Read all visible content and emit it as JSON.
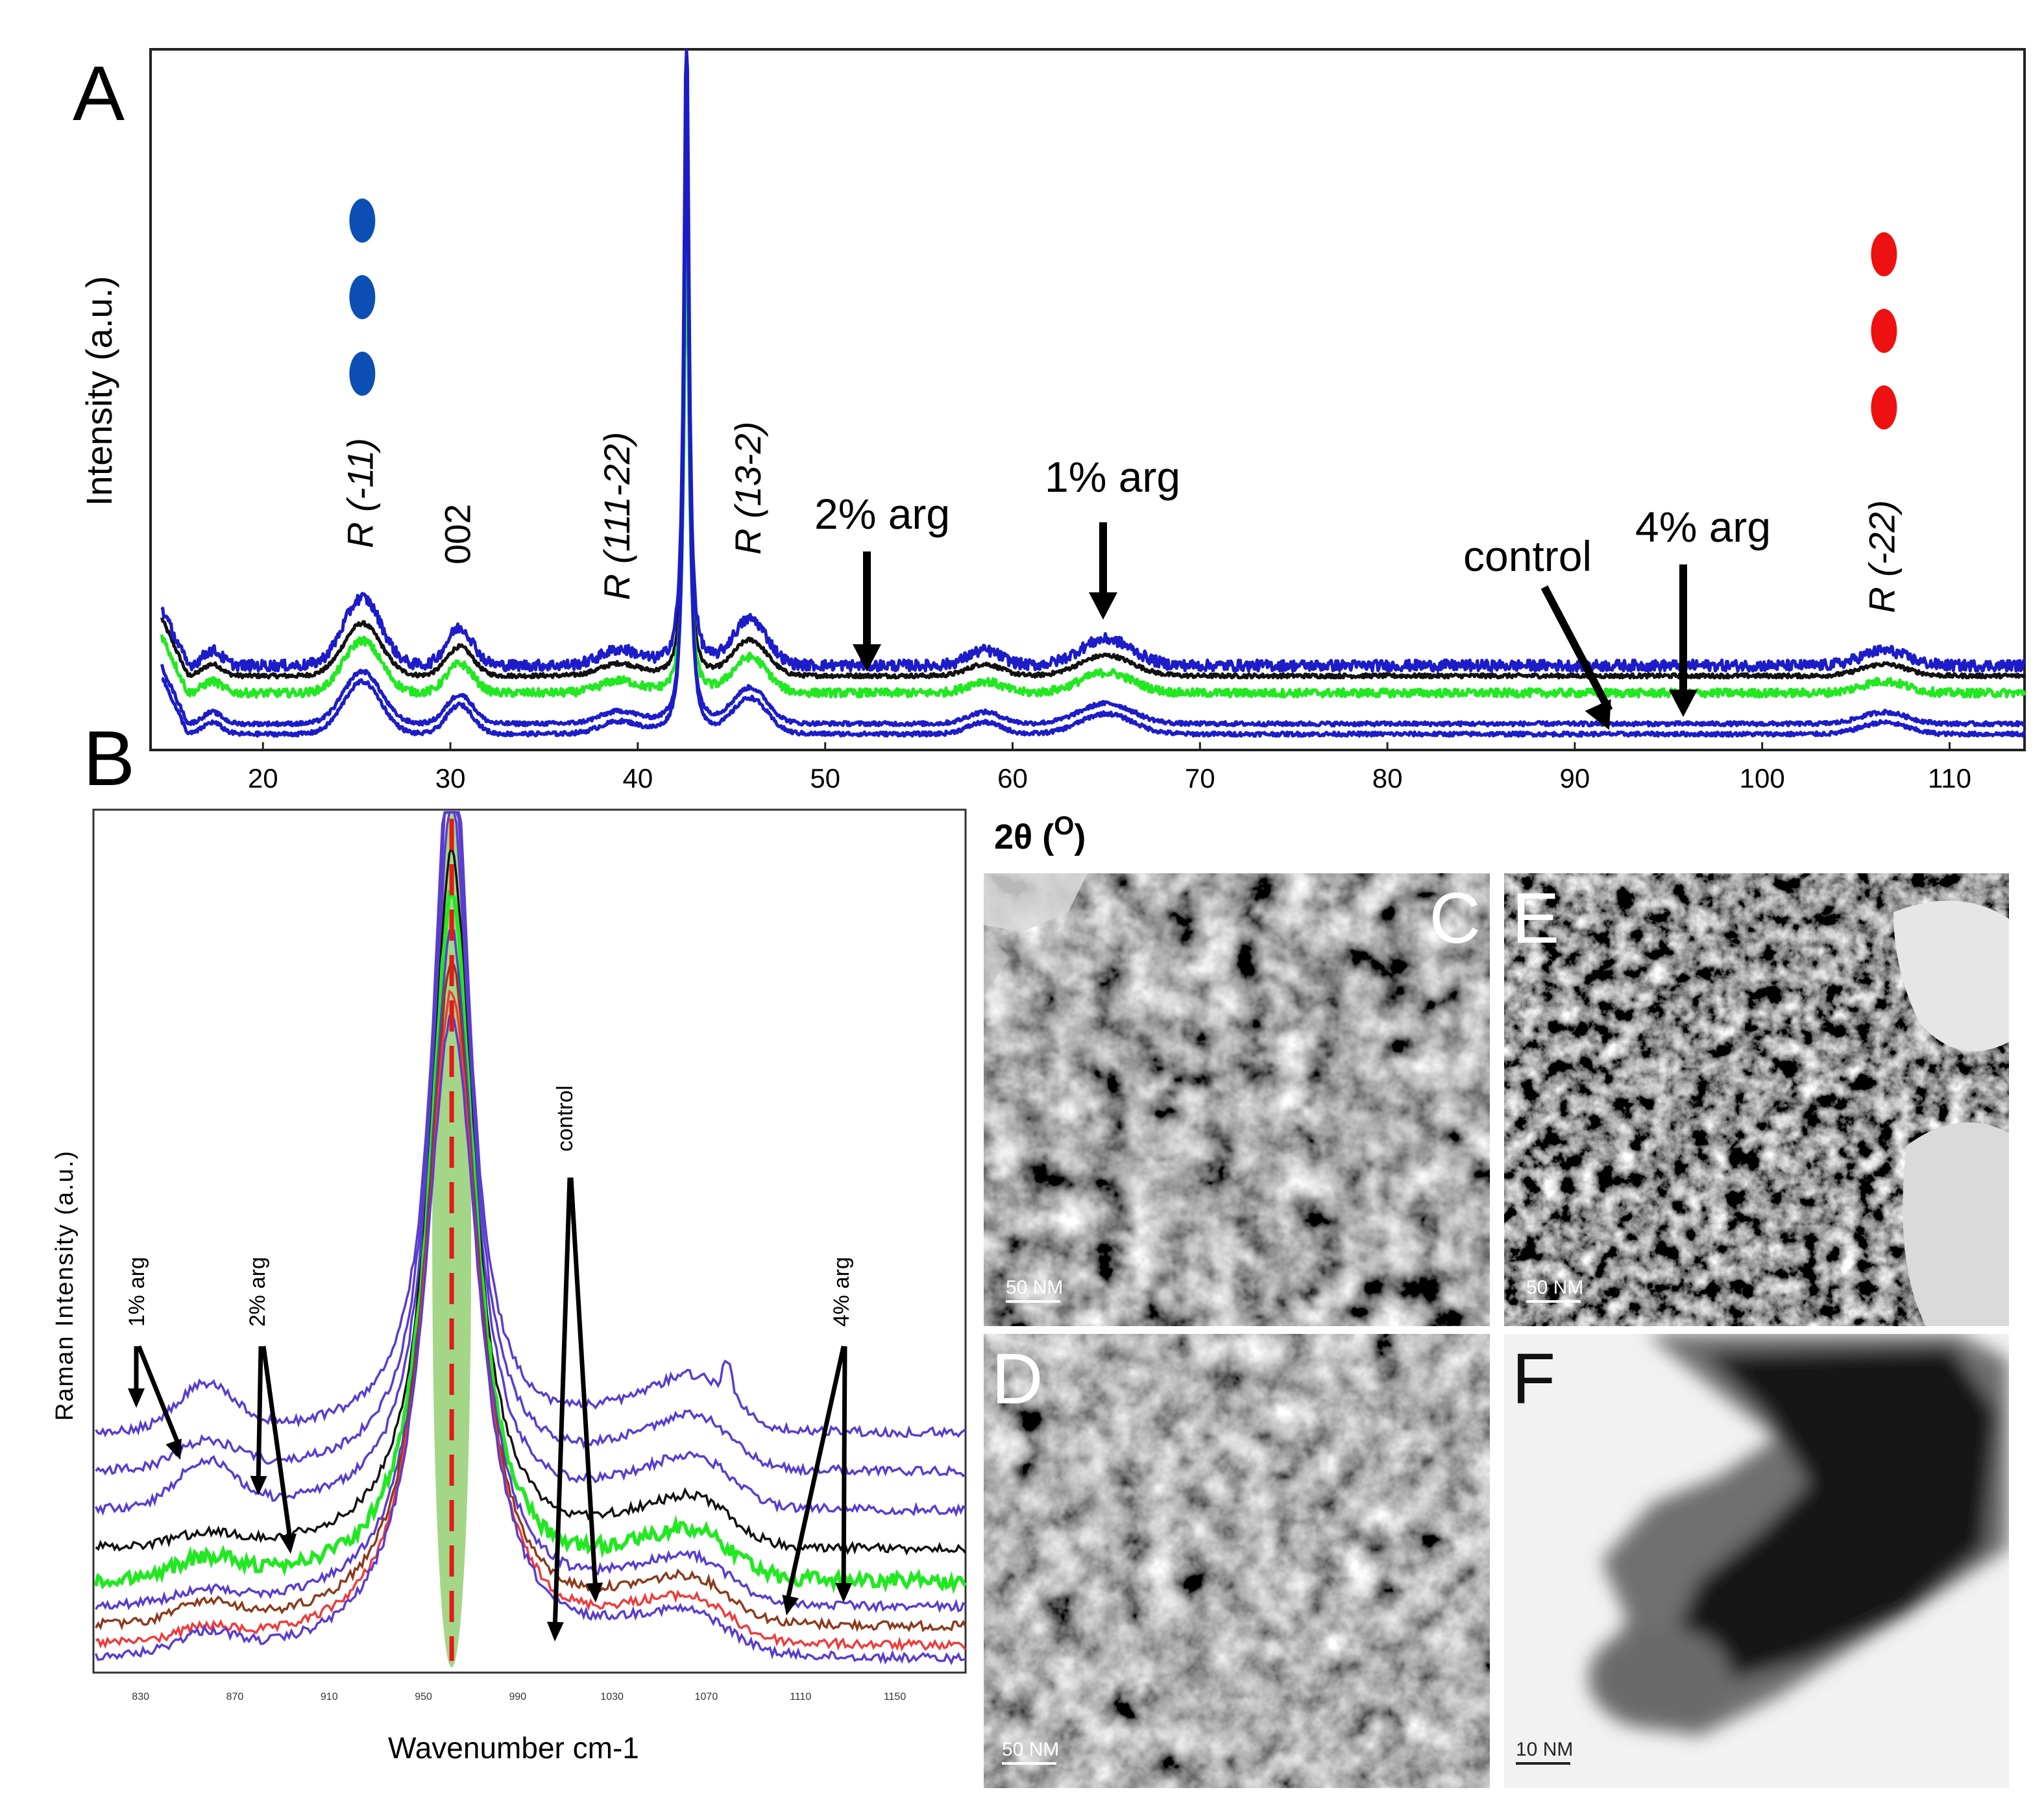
{
  "panel_labels": {
    "a": "A",
    "b": "B",
    "c": "C",
    "d": "D",
    "e": "E",
    "f": "F"
  },
  "colors": {
    "blue": "#1c1cc8",
    "green": "#22e822",
    "black": "#111111",
    "blue_dot": "#0b4fb4",
    "red_dot": "#ee1111",
    "raman_green_band": "#9ad27a",
    "raman_red_dash": "#e11a1a",
    "raman_brown": "#8b3a1c",
    "raman_red": "#f03a3a",
    "raman_violet": "#5a3ccf"
  },
  "chart_data": [
    {
      "id": "xrd",
      "type": "line",
      "xlabel": "2θ (°)",
      "ylabel": "Intensity (a.u.)",
      "xlim": [
        14,
        114
      ],
      "ylim": [
        0,
        100
      ],
      "x_ticks": [
        "20",
        "30",
        "40",
        "50",
        "60",
        "70",
        "80",
        "90",
        "100",
        "110"
      ],
      "x_tick_values": [
        20,
        30,
        40,
        50,
        60,
        70,
        80,
        90,
        100,
        110
      ],
      "xlabel_parts": {
        "main": "2θ (",
        "sup": "O",
        "close": ")"
      },
      "series": [
        {
          "name": "control",
          "color": "#1c1cc8",
          "baseline": 1
        },
        {
          "name": "4% arg",
          "color": "#1c1cc8",
          "baseline": 2.5
        },
        {
          "name": "1% arg",
          "color": "#1c1cc8",
          "baseline": 11
        },
        {
          "name": "green",
          "color": "#22e822",
          "baseline": 7
        },
        {
          "name": "black",
          "color": "#111111",
          "baseline": 9.5
        }
      ],
      "peaks": [
        {
          "x": 25.3,
          "label": "R (-11)"
        },
        {
          "x": 30.5,
          "label": "002"
        },
        {
          "x": 39.0,
          "label": "R (111-22)"
        },
        {
          "x": 42.6,
          "label": ""
        },
        {
          "x": 46.0,
          "label": "R (13-2)"
        },
        {
          "x": 106.5,
          "label": "R (-22)"
        }
      ],
      "annotations": [
        {
          "text": "2% arg",
          "arrow_to_x": 52.5
        },
        {
          "text": "1% arg",
          "arrow_to_x": 65.0
        },
        {
          "text": "control",
          "arrow_to_x": 92.0
        },
        {
          "text": "4% arg",
          "arrow_to_x": 95.8
        }
      ],
      "markers": [
        {
          "group": "blue",
          "x": 25.3,
          "count": 3
        },
        {
          "group": "red",
          "x": 106.5,
          "count": 3
        }
      ]
    },
    {
      "id": "raman",
      "type": "line",
      "xlabel": "Wavenumber cm-1",
      "ylabel": "Raman Intensity (a.u.)",
      "xlim": [
        810,
        1180
      ],
      "x_ticks": [
        "830",
        "870",
        "910",
        "950",
        "990",
        "1030",
        "1070",
        "1110",
        "1150"
      ],
      "x_tick_values": [
        830,
        870,
        910,
        950,
        990,
        1030,
        1070,
        1110,
        1150
      ],
      "peak_center": 962,
      "annotations": [
        {
          "text": "1% arg"
        },
        {
          "text": "2% arg"
        },
        {
          "text": "control"
        },
        {
          "text": "4% arg"
        }
      ]
    }
  ],
  "tem_images": [
    {
      "panel": "C",
      "scale": "50 NM"
    },
    {
      "panel": "E",
      "scale": "50 NM"
    },
    {
      "panel": "D",
      "scale": "50 NM"
    },
    {
      "panel": "F",
      "scale": "10 NM"
    }
  ]
}
